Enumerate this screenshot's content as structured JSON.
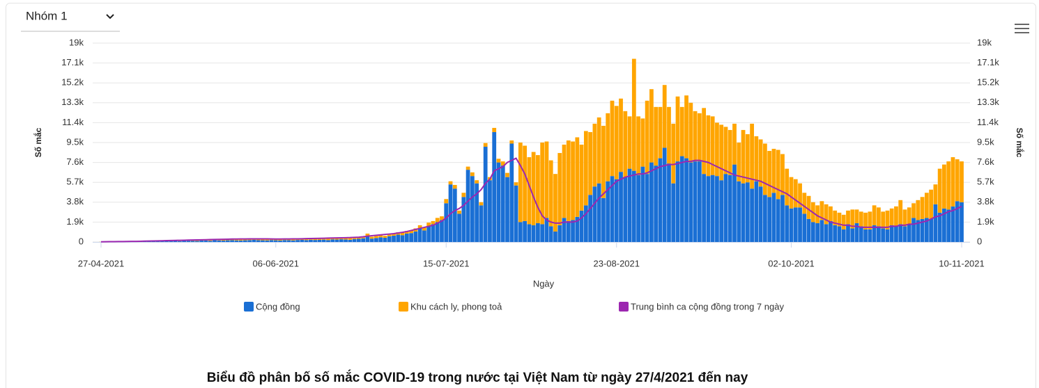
{
  "ui": {
    "dropdown": "Nhóm 1"
  },
  "chart_data": {
    "type": "bar",
    "stacked": true,
    "title": "Biểu đồ phân bố số mắc COVID-19 trong nước tại Việt Nam từ ngày 27/4/2021 đến nay",
    "x_label": "Ngày",
    "y_label": "Số mắc",
    "y2_label": "Số mắc",
    "categories": [
      "27-04-2021",
      null,
      null,
      null,
      null,
      null,
      null,
      null,
      null,
      null,
      null,
      null,
      null,
      null,
      null,
      null,
      null,
      null,
      null,
      null,
      null,
      null,
      null,
      null,
      null,
      null,
      null,
      null,
      null,
      null,
      null,
      null,
      null,
      null,
      null,
      null,
      null,
      null,
      null,
      null,
      "06-06-2021",
      null,
      null,
      null,
      null,
      null,
      null,
      null,
      null,
      null,
      null,
      null,
      null,
      null,
      null,
      null,
      null,
      null,
      null,
      null,
      null,
      null,
      null,
      null,
      null,
      null,
      null,
      null,
      null,
      null,
      null,
      null,
      null,
      null,
      null,
      null,
      null,
      null,
      null,
      "15-07-2021",
      null,
      null,
      null,
      null,
      null,
      null,
      null,
      null,
      null,
      null,
      null,
      null,
      null,
      null,
      null,
      null,
      null,
      null,
      null,
      null,
      null,
      null,
      null,
      null,
      null,
      null,
      null,
      null,
      null,
      null,
      null,
      null,
      null,
      null,
      null,
      null,
      null,
      null,
      "23-08-2021",
      null,
      null,
      null,
      null,
      null,
      null,
      null,
      null,
      null,
      null,
      null,
      null,
      null,
      null,
      null,
      null,
      null,
      null,
      null,
      null,
      null,
      null,
      null,
      null,
      null,
      null,
      null,
      null,
      null,
      null,
      null,
      null,
      null,
      null,
      null,
      null,
      null,
      null,
      null,
      "02-10-2021",
      null,
      null,
      null,
      null,
      null,
      null,
      null,
      null,
      null,
      null,
      null,
      null,
      null,
      null,
      null,
      null,
      null,
      null,
      null,
      null,
      null,
      null,
      null,
      null,
      null,
      null,
      null,
      null,
      null,
      null,
      null,
      null,
      null,
      null,
      null,
      null,
      null,
      null,
      "10-11-2021"
    ],
    "series": [
      {
        "name": "Cộng đồng",
        "color": "#1a6fd4",
        "values": [
          5,
          10,
          8,
          12,
          20,
          30,
          25,
          40,
          35,
          45,
          50,
          60,
          45,
          70,
          80,
          65,
          90,
          100,
          85,
          110,
          120,
          100,
          95,
          130,
          140,
          110,
          180,
          150,
          130,
          160,
          170,
          150,
          140,
          160,
          180,
          200,
          170,
          160,
          150,
          180,
          160,
          140,
          180,
          170,
          150,
          190,
          200,
          180,
          210,
          190,
          200,
          220,
          180,
          250,
          230,
          260,
          240,
          210,
          280,
          300,
          350,
          600,
          320,
          380,
          450,
          400,
          550,
          600,
          700,
          650,
          800,
          850,
          1000,
          1300,
          1100,
          1500,
          1700,
          1900,
          2100,
          3700,
          5500,
          5100,
          2700,
          4300,
          6900,
          6300,
          5600,
          3500,
          9100,
          5900,
          10500,
          7600,
          7300,
          6200,
          9400,
          5400,
          1900,
          2000,
          1700,
          1600,
          1800,
          1700,
          2300,
          1500,
          1000,
          1600,
          2300,
          2000,
          2100,
          2400,
          3000,
          3500,
          4500,
          5300,
          5600,
          4200,
          5800,
          6300,
          6000,
          6700,
          6200,
          7000,
          6800,
          6400,
          7200,
          6500,
          7600,
          7300,
          8000,
          9000,
          7500,
          5600,
          7700,
          8200,
          8000,
          7600,
          7700,
          7700,
          6500,
          6300,
          6400,
          6300,
          5900,
          6500,
          6400,
          7400,
          5800,
          5600,
          5700,
          5100,
          5800,
          5300,
          4500,
          4300,
          4700,
          4100,
          4500,
          3500,
          3200,
          3300,
          3300,
          2700,
          2200,
          1900,
          1800,
          2100,
          1700,
          2000,
          1600,
          1500,
          1200,
          1700,
          1300,
          1800,
          1500,
          1200,
          1200,
          1600,
          1500,
          1300,
          1200,
          1600,
          1500,
          1700,
          1500,
          1700,
          2300,
          2100,
          2200,
          2300,
          2200,
          3600,
          2800,
          3200,
          3100,
          3400,
          3900,
          3800
        ]
      },
      {
        "name": "Khu cách ly, phong toả",
        "color": "#ffa500",
        "values": [
          10,
          15,
          12,
          20,
          25,
          30,
          40,
          35,
          50,
          45,
          40,
          60,
          55,
          70,
          80,
          90,
          75,
          100,
          85,
          90,
          80,
          90,
          100,
          110,
          95,
          120,
          100,
          130,
          110,
          100,
          120,
          110,
          90,
          100,
          130,
          120,
          140,
          100,
          120,
          110,
          110,
          120,
          100,
          130,
          140,
          120,
          110,
          150,
          130,
          120,
          130,
          140,
          150,
          120,
          160,
          150,
          130,
          170,
          180,
          160,
          170,
          200,
          180,
          200,
          210,
          190,
          220,
          200,
          230,
          240,
          250,
          280,
          300,
          300,
          320,
          350,
          300,
          400,
          350,
          400,
          300,
          350,
          300,
          400,
          300,
          350,
          300,
          300,
          350,
          300,
          400,
          350,
          400,
          400,
          300,
          300,
          7600,
          7200,
          6400,
          7000,
          6500,
          7800,
          7300,
          6300,
          5500,
          6900,
          7000,
          7700,
          7500,
          7600,
          6300,
          7100,
          6000,
          6000,
          6300,
          6900,
          6500,
          7200,
          7000,
          7000,
          6300,
          5000,
          10700,
          5600,
          4600,
          7000,
          7000,
          5600,
          4900,
          6000,
          5400,
          5700,
          6200,
          4700,
          6000,
          5700,
          4800,
          4600,
          6300,
          5800,
          5600,
          5100,
          5300,
          4500,
          4300,
          3900,
          3700,
          5100,
          4600,
          6200,
          4300,
          4500,
          4900,
          4400,
          4200,
          4700,
          3900,
          3500,
          3000,
          2700,
          2300,
          2000,
          2200,
          1900,
          1700,
          1800,
          1900,
          1400,
          1400,
          1300,
          1400,
          1300,
          1800,
          1300,
          1400,
          1600,
          1700,
          1900,
          1800,
          1600,
          1800,
          1600,
          1900,
          2300,
          1600,
          1600,
          1400,
          1900,
          2100,
          2400,
          2800,
          1900,
          4200,
          4200,
          4600,
          4700,
          4000,
          3900
        ]
      },
      {
        "name": "Trung bình ca cộng đồng trong 7 ngày",
        "color": "#9c27b0",
        "type": "line",
        "values": [
          20,
          25,
          30,
          35,
          40,
          45,
          50,
          55,
          60,
          70,
          80,
          90,
          100,
          110,
          120,
          130,
          140,
          150,
          160,
          170,
          180,
          190,
          200,
          210,
          220,
          230,
          240,
          250,
          260,
          270,
          280,
          280,
          290,
          290,
          300,
          300,
          300,
          300,
          300,
          290,
          280,
          280,
          290,
          290,
          300,
          300,
          310,
          320,
          330,
          340,
          350,
          360,
          370,
          380,
          390,
          400,
          410,
          420,
          440,
          460,
          500,
          560,
          600,
          640,
          680,
          720,
          760,
          800,
          860,
          920,
          1000,
          1100,
          1200,
          1300,
          1400,
          1500,
          1600,
          1800,
          2000,
          2300,
          2700,
          3000,
          3200,
          3500,
          3900,
          4300,
          4600,
          5000,
          5600,
          6000,
          6800,
          7000,
          7200,
          7600,
          7800,
          8000,
          7300,
          6500,
          5400,
          4300,
          3300,
          2500,
          2100,
          1900,
          1800,
          1800,
          1900,
          1900,
          1900,
          2000,
          2300,
          2700,
          3200,
          3700,
          4200,
          4600,
          5000,
          5400,
          5800,
          6000,
          6200,
          6300,
          6400,
          6500,
          6500,
          6600,
          6800,
          7000,
          7200,
          7300,
          7400,
          7400,
          7500,
          7600,
          7700,
          7700,
          7800,
          7800,
          7700,
          7600,
          7400,
          7200,
          7000,
          6800,
          6600,
          6400,
          6300,
          6200,
          6100,
          6000,
          5900,
          5800,
          5600,
          5400,
          5200,
          5000,
          4800,
          4600,
          4300,
          4000,
          3700,
          3400,
          3100,
          2800,
          2500,
          2300,
          2100,
          1900,
          1800,
          1700,
          1600,
          1600,
          1500,
          1500,
          1400,
          1400,
          1400,
          1400,
          1400,
          1400,
          1400,
          1500,
          1500,
          1600,
          1600,
          1700,
          1700,
          1800,
          1900,
          2000,
          2200,
          2400,
          2500,
          2700,
          2900,
          3000,
          3200,
          3400
        ]
      }
    ],
    "ylim": [
      0,
      19000
    ],
    "yticks": [
      0,
      {
        "value": 1900,
        "label": "1.9k"
      },
      {
        "value": 3800,
        "label": "3.8k"
      },
      {
        "value": 5700,
        "label": "5.7k"
      },
      {
        "value": 7600,
        "label": "7.6k"
      },
      {
        "value": 9500,
        "label": "9.5k"
      },
      {
        "value": 11400,
        "label": "11.4k"
      },
      {
        "value": 13300,
        "label": "13.3k"
      },
      {
        "value": 15200,
        "label": "15.2k"
      },
      {
        "value": 17100,
        "label": "17.1k"
      },
      {
        "value": 19000,
        "label": "19k"
      }
    ],
    "y2lim": [
      0,
      19000
    ],
    "y2ticks": [
      0,
      {
        "value": 1900,
        "label": "1.9k"
      },
      {
        "value": 3800,
        "label": "3.8k"
      },
      {
        "value": 5700,
        "label": "5.7k"
      },
      {
        "value": 7600,
        "label": "7.6k"
      },
      {
        "value": 9500,
        "label": "9.5k"
      },
      {
        "value": 11400,
        "label": "11.4k"
      },
      {
        "value": 13300,
        "label": "13.3k"
      },
      {
        "value": 15200,
        "label": "15.2k"
      },
      {
        "value": 17100,
        "label": "17.1k"
      },
      {
        "value": 19000,
        "label": "19k"
      }
    ],
    "grid": true,
    "legend": "bottom"
  }
}
